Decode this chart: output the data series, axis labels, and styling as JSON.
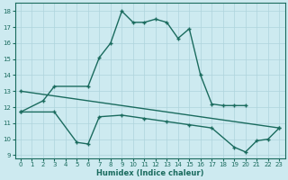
{
  "xlabel": "Humidex (Indice chaleur)",
  "xlim": [
    -0.5,
    23.5
  ],
  "ylim": [
    8.8,
    18.5
  ],
  "yticks": [
    9,
    10,
    11,
    12,
    13,
    14,
    15,
    16,
    17,
    18
  ],
  "xticks": [
    0,
    1,
    2,
    3,
    4,
    5,
    6,
    7,
    8,
    9,
    10,
    11,
    12,
    13,
    14,
    15,
    16,
    17,
    18,
    19,
    20,
    21,
    22,
    23
  ],
  "bg_color": "#cdeaf0",
  "line_color": "#1a6b5e",
  "grid_color": "#aed4dc",
  "line1_x": [
    0,
    2,
    3,
    6,
    7,
    8,
    9,
    10,
    11,
    12,
    13,
    14,
    15,
    16,
    17,
    18,
    19,
    20
  ],
  "line1_y": [
    11.7,
    12.4,
    13.3,
    13.3,
    15.1,
    16.0,
    18.0,
    17.3,
    17.3,
    17.5,
    17.3,
    16.3,
    16.9,
    14.0,
    12.2,
    12.1,
    12.1,
    12.1
  ],
  "line2_x": [
    0,
    23
  ],
  "line2_y": [
    13.0,
    10.7
  ],
  "line3_x": [
    0,
    3,
    5,
    6,
    7,
    9,
    11,
    13,
    15,
    17,
    19,
    20,
    21,
    22,
    23
  ],
  "line3_y": [
    11.7,
    11.7,
    9.8,
    9.7,
    11.4,
    11.5,
    11.3,
    11.1,
    10.9,
    10.7,
    9.5,
    9.2,
    9.9,
    10.0,
    10.7
  ]
}
